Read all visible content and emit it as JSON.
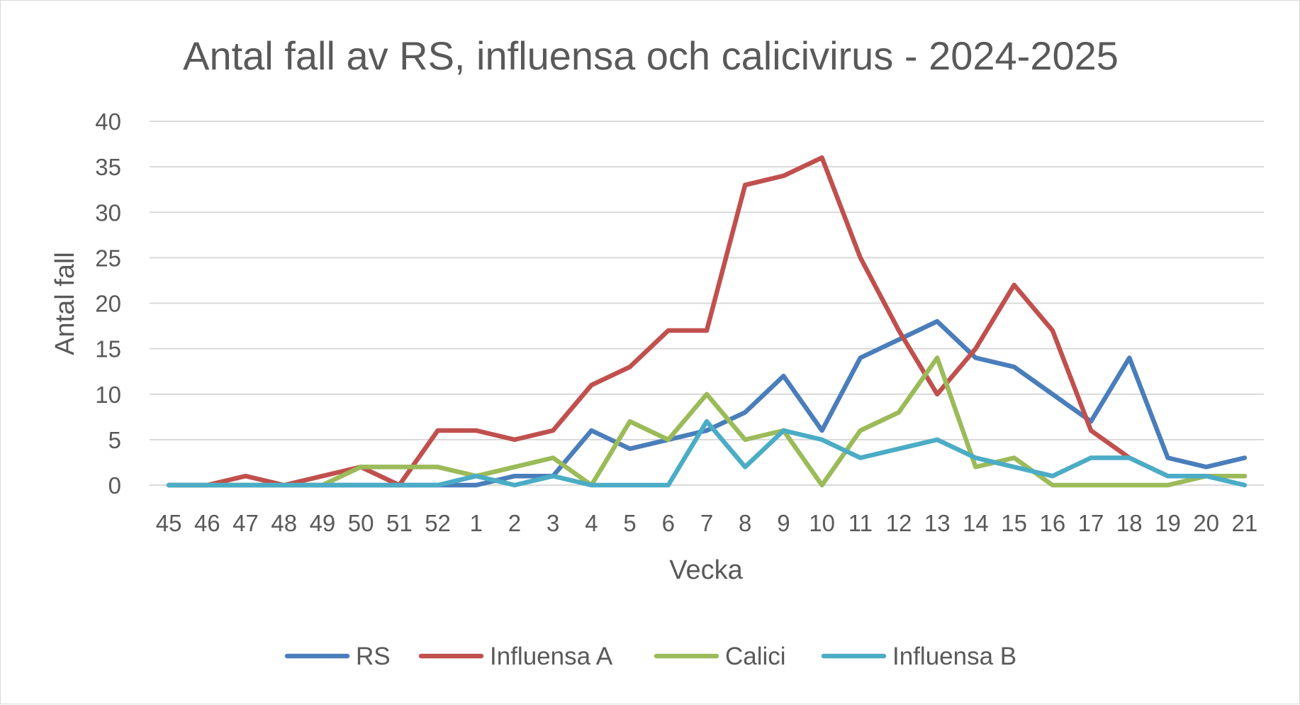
{
  "chart_data": {
    "type": "line",
    "title": "Antal fall av RS, influensa och calicivirus - 2024-2025",
    "xlabel": "Vecka",
    "ylabel": "Antal fall",
    "ylim": [
      0,
      40
    ],
    "yticks": [
      "0",
      "5",
      "10",
      "15",
      "20",
      "25",
      "30",
      "35",
      "40"
    ],
    "grid": true,
    "legend_position": "bottom",
    "categories": [
      "45",
      "46",
      "47",
      "48",
      "49",
      "50",
      "51",
      "52",
      "1",
      "2",
      "3",
      "4",
      "5",
      "6",
      "7",
      "8",
      "9",
      "10",
      "11",
      "12",
      "13",
      "14",
      "15",
      "16",
      "17",
      "18",
      "19",
      "20",
      "21"
    ],
    "series": [
      {
        "name": "RS",
        "color": "#4a7ebb",
        "values": [
          0,
          0,
          0,
          0,
          0,
          0,
          0,
          0,
          0,
          1,
          1,
          6,
          4,
          5,
          6,
          8,
          12,
          6,
          14,
          16,
          18,
          14,
          13,
          10,
          7,
          14,
          3,
          2,
          3
        ]
      },
      {
        "name": "Influensa A",
        "color": "#c0504d",
        "values": [
          0,
          0,
          1,
          0,
          1,
          2,
          0,
          6,
          6,
          5,
          6,
          11,
          13,
          17,
          17,
          33,
          34,
          36,
          25,
          17,
          10,
          15,
          22,
          17,
          6,
          3,
          1,
          1,
          1
        ]
      },
      {
        "name": "Calici",
        "color": "#9bbb59",
        "values": [
          0,
          0,
          0,
          0,
          0,
          2,
          2,
          2,
          1,
          2,
          3,
          0,
          7,
          5,
          10,
          5,
          6,
          0,
          6,
          8,
          14,
          2,
          3,
          0,
          0,
          0,
          0,
          1,
          1
        ]
      },
      {
        "name": "Influensa B",
        "color": "#4bacc6",
        "values": [
          0,
          0,
          0,
          0,
          0,
          0,
          0,
          0,
          1,
          0,
          1,
          0,
          0,
          0,
          7,
          2,
          6,
          5,
          3,
          4,
          5,
          3,
          2,
          1,
          3,
          3,
          1,
          1,
          0
        ]
      }
    ]
  }
}
